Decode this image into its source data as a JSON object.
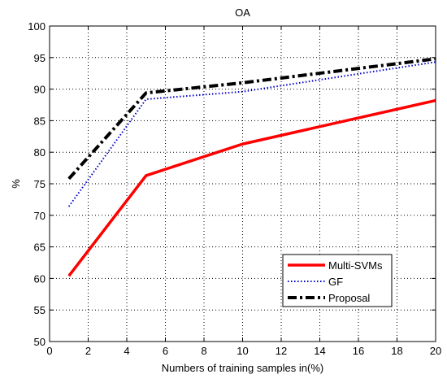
{
  "chart_data": {
    "type": "line",
    "title": "OA",
    "xlabel": "Numbers of training samples in(%)",
    "ylabel": "%",
    "xlim": [
      0,
      20
    ],
    "ylim": [
      50,
      100
    ],
    "xticks": [
      0,
      2,
      4,
      6,
      8,
      10,
      12,
      14,
      16,
      18,
      20
    ],
    "yticks": [
      50,
      55,
      60,
      65,
      70,
      75,
      80,
      85,
      90,
      95,
      100
    ],
    "grid": true,
    "legend_position": "bottom-right",
    "series": [
      {
        "name": "Multi-SVMs",
        "x": [
          1,
          5,
          10,
          20
        ],
        "values": [
          60.4,
          76.3,
          81.3,
          88.2
        ],
        "color": "#ff0000",
        "style": "solid"
      },
      {
        "name": "GF",
        "x": [
          1,
          5,
          10,
          20
        ],
        "values": [
          71.4,
          88.4,
          89.6,
          94.3
        ],
        "color": "#0000cc",
        "style": "dotted"
      },
      {
        "name": "Proposal",
        "x": [
          1,
          5,
          10,
          20
        ],
        "values": [
          75.8,
          89.4,
          91.0,
          94.8
        ],
        "color": "#000000",
        "style": "dashdot"
      }
    ]
  }
}
